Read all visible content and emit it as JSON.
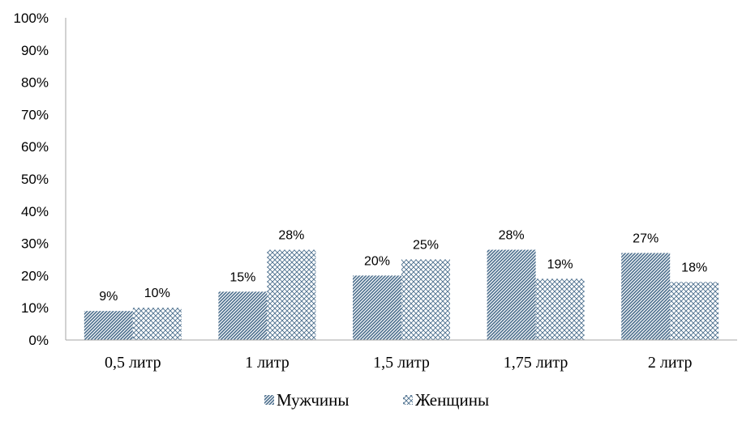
{
  "chart_data": {
    "type": "bar",
    "categories": [
      "0,5 литр",
      "1 литр",
      "1,5 литр",
      "1,75 литр",
      "2 литр"
    ],
    "series": [
      {
        "name": "Мужчины",
        "values": [
          9,
          15,
          20,
          28,
          27
        ],
        "labels": [
          "9%",
          "15%",
          "20%",
          "28%",
          "27%"
        ],
        "pattern": "diagonal-hatch",
        "color": "#4a6d8c"
      },
      {
        "name": "Женщины",
        "values": [
          10,
          28,
          25,
          19,
          18
        ],
        "labels": [
          "10%",
          "28%",
          "25%",
          "19%",
          "18%"
        ],
        "pattern": "cross-hatch",
        "color": "#4a6d8c"
      }
    ],
    "yticks": [
      "0%",
      "10%",
      "20%",
      "30%",
      "40%",
      "50%",
      "60%",
      "70%",
      "80%",
      "90%",
      "100%"
    ],
    "ylim": [
      0,
      100
    ],
    "grid": false,
    "legend": "bottom-center",
    "title": "",
    "xlabel": "",
    "ylabel": ""
  }
}
